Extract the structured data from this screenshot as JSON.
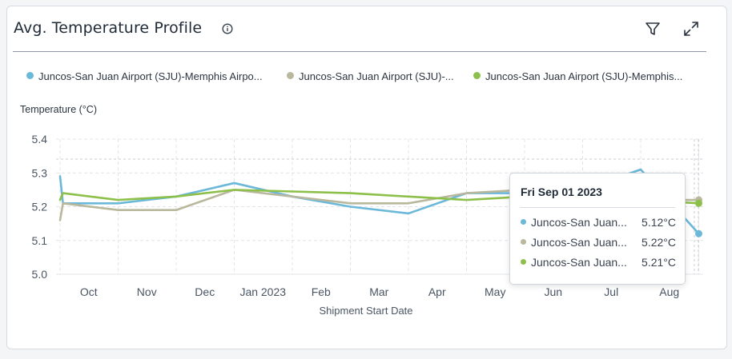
{
  "header": {
    "title": "Avg. Temperature Profile"
  },
  "legend": [
    {
      "label": "Juncos-San Juan Airport (SJU)-Memphis Airpo...",
      "color": "#6bb8d9"
    },
    {
      "label": "Juncos-San Juan Airport (SJU)-...",
      "color": "#b9b79c"
    },
    {
      "label": "Juncos-San Juan Airport (SJU)-Memphis...",
      "color": "#8dc04a"
    }
  ],
  "tooltip": {
    "date": "Fri Sep 01 2023",
    "rows": [
      {
        "label": "Juncos-San Juan...",
        "value": "5.12°C",
        "color": "#6bb8d9"
      },
      {
        "label": "Juncos-San Juan...",
        "value": "5.22°C",
        "color": "#b9b79c"
      },
      {
        "label": "Juncos-San Juan...",
        "value": "5.21°C",
        "color": "#8dc04a"
      }
    ]
  },
  "chart_data": {
    "type": "line",
    "ylabel": "Temperature (°C)",
    "xlabel": "Shipment Start Date",
    "ylim": [
      5.0,
      5.4
    ],
    "yticks": [
      "5.0",
      "5.1",
      "5.2",
      "5.3",
      "5.4"
    ],
    "xtick_labels": [
      "Oct",
      "Nov",
      "Dec",
      "Jan 2023",
      "Feb",
      "Mar",
      "Apr",
      "May",
      "Jun",
      "Jul",
      "Aug"
    ],
    "grid": true,
    "series": [
      {
        "color": "#6bb8d9",
        "points": [
          [
            0.0,
            5.29
          ],
          [
            0.05,
            5.21
          ],
          [
            1.0,
            5.21
          ],
          [
            2.0,
            5.23
          ],
          [
            3.0,
            5.27
          ],
          [
            4.0,
            5.23
          ],
          [
            5.0,
            5.2
          ],
          [
            6.0,
            5.18
          ],
          [
            7.0,
            5.24
          ],
          [
            8.0,
            5.24
          ],
          [
            9.0,
            5.25
          ],
          [
            10.0,
            5.31
          ],
          [
            11.0,
            5.12
          ]
        ]
      },
      {
        "color": "#b9b79c",
        "points": [
          [
            0.0,
            5.16
          ],
          [
            0.05,
            5.21
          ],
          [
            1.0,
            5.19
          ],
          [
            2.0,
            5.19
          ],
          [
            3.0,
            5.25
          ],
          [
            4.0,
            5.23
          ],
          [
            5.0,
            5.21
          ],
          [
            6.0,
            5.21
          ],
          [
            7.0,
            5.24
          ],
          [
            8.0,
            5.25
          ],
          [
            9.0,
            5.22
          ],
          [
            10.0,
            5.22
          ],
          [
            11.0,
            5.22
          ]
        ]
      },
      {
        "color": "#8dc04a",
        "points": [
          [
            0.0,
            5.22
          ],
          [
            0.05,
            5.24
          ],
          [
            1.0,
            5.22
          ],
          [
            2.0,
            5.23
          ],
          [
            3.0,
            5.25
          ],
          [
            4.0,
            5.245
          ],
          [
            5.0,
            5.24
          ],
          [
            6.0,
            5.23
          ],
          [
            7.0,
            5.22
          ],
          [
            8.0,
            5.23
          ],
          [
            9.0,
            5.22
          ],
          [
            10.0,
            5.22
          ],
          [
            11.0,
            5.21
          ]
        ]
      }
    ]
  }
}
